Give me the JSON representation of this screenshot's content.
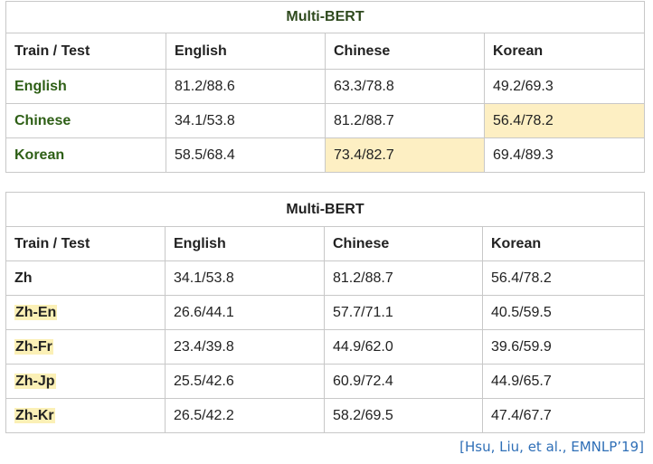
{
  "table1": {
    "title": "Multi-BERT",
    "headers": [
      "Train / Test",
      "English",
      "Chinese",
      "Korean"
    ],
    "rows": [
      {
        "label": "English",
        "cells": [
          "81.2/88.6",
          "63.3/78.8",
          "49.2/69.3"
        ]
      },
      {
        "label": "Chinese",
        "cells": [
          "34.1/53.8",
          "81.2/88.7",
          "56.4/78.2"
        ]
      },
      {
        "label": "Korean",
        "cells": [
          "58.5/68.4",
          "73.4/82.7",
          "69.4/89.3"
        ]
      }
    ]
  },
  "table2": {
    "title": "Multi-BERT",
    "headers": [
      "Train / Test",
      "English",
      "Chinese",
      "Korean"
    ],
    "rows": [
      {
        "label": "Zh",
        "cells": [
          "34.1/53.8",
          "81.2/88.7",
          "56.4/78.2"
        ]
      },
      {
        "label": "Zh-En",
        "cells": [
          "26.6/44.1",
          "57.7/71.1",
          "40.5/59.5"
        ]
      },
      {
        "label": "Zh-Fr",
        "cells": [
          "23.4/39.8",
          "44.9/62.0",
          "39.6/59.9"
        ]
      },
      {
        "label": "Zh-Jp",
        "cells": [
          "25.5/42.6",
          "60.9/72.4",
          "44.9/65.7"
        ]
      },
      {
        "label": "Zh-Kr",
        "cells": [
          "26.5/42.2",
          "58.2/69.5",
          "47.4/67.7"
        ]
      }
    ]
  },
  "citation": "[Hsu, Liu, et al., EMNLP’19]",
  "colors": {
    "header_text": "#1f3b5a",
    "row_label_text": "#2e5f16",
    "highlight_value": "#9b2d1f",
    "highlight_cell_bg": "#fdefc3",
    "citation": "#2f6fb7"
  }
}
